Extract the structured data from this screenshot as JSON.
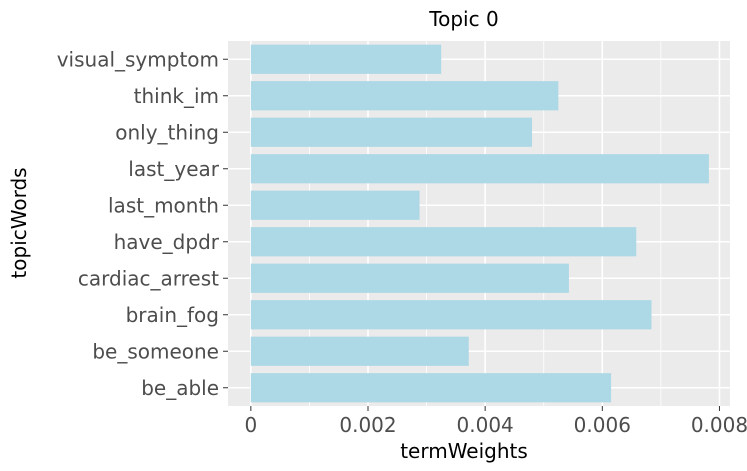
{
  "chart_data": {
    "type": "bar",
    "orientation": "horizontal",
    "title": "Topic 0",
    "xlabel": "termWeights",
    "ylabel": "topicWords",
    "categories": [
      "visual_symptom",
      "think_im",
      "only_thing",
      "last_year",
      "last_month",
      "have_dpdr",
      "cardiac_arrest",
      "brain_fog",
      "be_someone",
      "be_able"
    ],
    "values": [
      0.00325,
      0.00525,
      0.0048,
      0.00782,
      0.00288,
      0.00658,
      0.00543,
      0.00684,
      0.00372,
      0.00615
    ],
    "xlim": [
      -0.00039,
      0.00818
    ],
    "xticks": [
      0,
      0.002,
      0.004,
      0.006,
      0.008
    ],
    "xtick_labels": [
      "0",
      "0.002",
      "0.004",
      "0.006",
      "0.008"
    ],
    "grid": true,
    "colors": {
      "bar": "#add8e6",
      "panel": "#ebebeb",
      "grid": "#ffffff"
    }
  }
}
